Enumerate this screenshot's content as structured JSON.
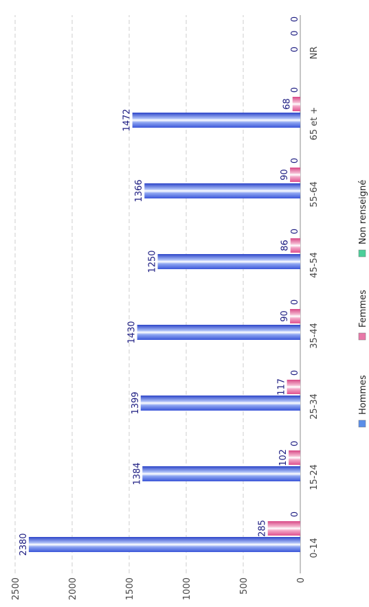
{
  "chart_data": {
    "type": "bar",
    "categories": [
      "0-14",
      "15-24",
      "25-34",
      "35-44",
      "45-54",
      "55-64",
      "65 et +",
      "NR"
    ],
    "series": [
      {
        "name": "Hommes",
        "color": "#5b8ee8",
        "values": [
          2380,
          1384,
          1399,
          1430,
          1250,
          1366,
          1472,
          0
        ]
      },
      {
        "name": "Femmes",
        "color": "#e879a8",
        "values": [
          285,
          102,
          117,
          90,
          86,
          90,
          68,
          0
        ]
      },
      {
        "name": "Non renseigné",
        "color": "#4ccf9a",
        "values": [
          0,
          0,
          0,
          0,
          0,
          0,
          0,
          0
        ]
      }
    ],
    "ylim": [
      0,
      2500
    ],
    "yticks": [
      0,
      500,
      1000,
      1500,
      2000,
      2500
    ],
    "grid": true,
    "legend": "bottom"
  }
}
